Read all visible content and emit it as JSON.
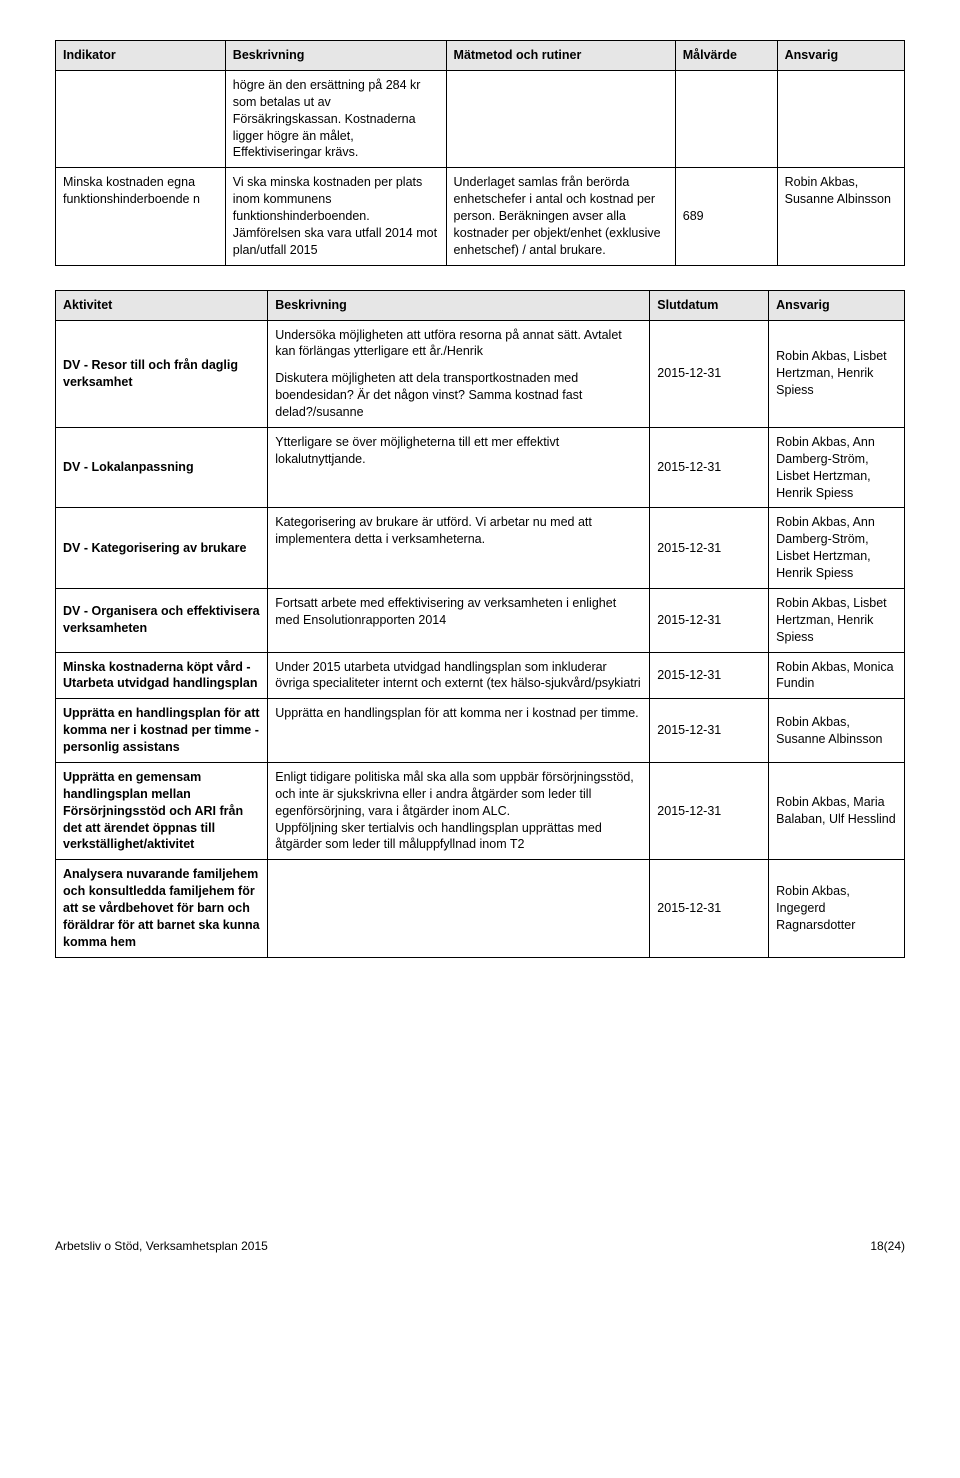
{
  "table1": {
    "headers": [
      "Indikator",
      "Beskrivning",
      "Mätmetod och rutiner",
      "Målvärde",
      "Ansvarig"
    ],
    "row1": {
      "indikator": "",
      "beskrivning": "högre än den ersättning på 284 kr som betalas ut av Försäkringskassan. Kostnaderna ligger högre än målet, Effektiviseringar krävs.",
      "matmetod": "",
      "malvarde": "",
      "ansvarig": ""
    },
    "row2": {
      "indikator": "Minska kostnaden egna funktionshinderboende n",
      "beskrivning": "Vi ska minska kostnaden per plats inom kommunens funktionshinderboenden. Jämförelsen ska vara utfall 2014 mot plan/utfall 2015",
      "matmetod": "Underlaget samlas från berörda enhetschefer i antal och kostnad per person. Beräkningen avser alla kostnader per objekt/enhet (exklusive enhetschef) / antal brukare.",
      "malvarde": "689",
      "ansvarig": "Robin Akbas, Susanne Albinsson"
    }
  },
  "table2": {
    "headers": [
      "Aktivitet",
      "Beskrivning",
      "Slutdatum",
      "Ansvarig"
    ],
    "rows": [
      {
        "aktivitet": "DV - Resor till och från daglig verksamhet",
        "beskrivning_p1": "Undersöka möjligheten att utföra resorna på annat sätt. Avtalet kan förlängas ytterligare ett år./Henrik",
        "beskrivning_p2": "Diskutera möjligheten att dela transportkostnaden med boendesidan? Är det någon vinst? Samma kostnad fast delad?/susanne",
        "slutdatum": "2015-12-31",
        "ansvarig": "Robin Akbas, Lisbet Hertzman, Henrik Spiess"
      },
      {
        "aktivitet": "DV - Lokalanpassning",
        "beskrivning": "Ytterligare se över möjligheterna till ett mer effektivt lokalutnyttjande.",
        "slutdatum": "2015-12-31",
        "ansvarig": "Robin Akbas, Ann Damberg-Ström, Lisbet Hertzman, Henrik Spiess"
      },
      {
        "aktivitet": "DV - Kategorisering av brukare",
        "beskrivning": "Kategorisering av brukare är utförd. Vi arbetar nu med att implementera detta i verksamheterna.",
        "slutdatum": "2015-12-31",
        "ansvarig": "Robin Akbas, Ann Damberg-Ström, Lisbet Hertzman, Henrik Spiess"
      },
      {
        "aktivitet": "DV - Organisera och effektivisera verksamheten",
        "beskrivning": "Fortsatt arbete med effektivisering av verksamheten i enlighet med Ensolutionrapporten 2014",
        "slutdatum": "2015-12-31",
        "ansvarig": "Robin Akbas, Lisbet Hertzman, Henrik Spiess"
      },
      {
        "aktivitet": "Minska kostnaderna köpt vård - Utarbeta utvidgad handlingsplan",
        "beskrivning": "Under 2015 utarbeta utvidgad handlingsplan som inkluderar övriga specialiteter internt och externt (tex hälso-sjukvård/psykiatri",
        "slutdatum": "2015-12-31",
        "ansvarig": "Robin Akbas, Monica Fundin"
      },
      {
        "aktivitet": "Upprätta en handlingsplan för att komma ner i kostnad per timme - personlig assistans",
        "beskrivning": "Upprätta en handlingsplan för att komma ner i kostnad per timme.",
        "slutdatum": "2015-12-31",
        "ansvarig": "Robin Akbas, Susanne Albinsson"
      },
      {
        "aktivitet": "Upprätta en gemensam handlingsplan mellan Försörjningsstöd och ARI  från det att ärendet öppnas till verkställighet/aktivitet",
        "beskrivning": "Enligt tidigare politiska mål ska alla som uppbär försörjningsstöd, och inte är sjukskrivna eller i andra åtgärder som leder till egenförsörjning, vara i åtgärder inom ALC.\nUppföljning sker tertialvis och handlingsplan upprättas med åtgärder som leder till måluppfyllnad inom T2",
        "slutdatum": "2015-12-31",
        "ansvarig": "Robin Akbas, Maria Balaban, Ulf Hesslind"
      },
      {
        "aktivitet": "Analysera nuvarande familjehem och konsultledda familjehem för att se vårdbehovet för barn och föräldrar för att barnet ska kunna komma hem",
        "beskrivning": "",
        "slutdatum": "2015-12-31",
        "ansvarig": "Robin Akbas, Ingegerd Ragnarsdotter"
      }
    ]
  },
  "footer": {
    "left": "Arbetsliv o Stöd, Verksamhetsplan 2015",
    "right": "18(24)"
  }
}
